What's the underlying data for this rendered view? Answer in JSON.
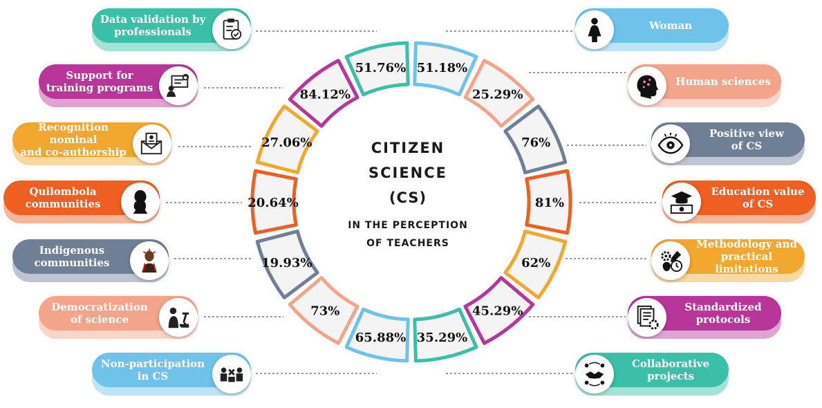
{
  "center": {
    "title_line1": "CITIZEN",
    "title_line2": "SCIENCE",
    "title_line3": "(CS)",
    "subtitle_line1": "IN THE PERCEPTION",
    "subtitle_line2": "OF TEACHERS"
  },
  "left_items": [
    {
      "label": "Data validation by\nprofessionals",
      "color": "#3bbfa8",
      "icon": "clipboard-check-icon"
    },
    {
      "label": "Support for\ntraining programs",
      "color": "#b8369a",
      "icon": "training-board-icon"
    },
    {
      "label": "Recognition  nominal\nand co-authorship",
      "color": "#f2a82e",
      "icon": "envelope-certificate-icon"
    },
    {
      "label": "Quilombola\ncommunities",
      "color": "#ef5f21",
      "icon": "person-silhouette-icon"
    },
    {
      "label": "Indigenous\ncommunities",
      "color": "#6f7f96",
      "icon": "indigenous-person-icon"
    },
    {
      "label": "Democratization\nof science",
      "color": "#f2a58a",
      "icon": "scientist-microscope-icon"
    },
    {
      "label": "Non-participation\nin CS",
      "color": "#6fc3ea",
      "icon": "people-vote-icon"
    }
  ],
  "right_items": [
    {
      "label": "Woman",
      "color": "#6fc3ea",
      "icon": "woman-icon"
    },
    {
      "label": "Human sciences",
      "color": "#f2a58a",
      "icon": "human-head-icon"
    },
    {
      "label": "Positive view\nof CS",
      "color": "#6f7f96",
      "icon": "eye-icon"
    },
    {
      "label": "Education value\nof CS",
      "color": "#ef5f21",
      "icon": "graduation-money-icon"
    },
    {
      "label": "Methodology and\npractical limitations",
      "color": "#f2a82e",
      "icon": "gears-clock-icon"
    },
    {
      "label": "Standardized\nprotocols",
      "color": "#b8369a",
      "icon": "documents-gear-icon"
    },
    {
      "label": "Collaborative\nprojects",
      "color": "#3bbfa8",
      "icon": "handshake-icon"
    }
  ],
  "ring_segments": [
    {
      "value": "51.18%",
      "color": "#6fc3ea"
    },
    {
      "value": "25.29%",
      "color": "#f2a58a"
    },
    {
      "value": "76%",
      "color": "#6f7f96"
    },
    {
      "value": "81%",
      "color": "#ef5f21"
    },
    {
      "value": "62%",
      "color": "#f2a82e"
    },
    {
      "value": "45.29%",
      "color": "#b8369a"
    },
    {
      "value": "35.29%",
      "color": "#3bbfa8"
    },
    {
      "value": "65.88%",
      "color": "#6fc3ea"
    },
    {
      "value": "73%",
      "color": "#f2a58a"
    },
    {
      "value": "19.93%",
      "color": "#6f7f96"
    },
    {
      "value": "20.64%",
      "color": "#ef5f21"
    },
    {
      "value": "27.06%",
      "color": "#f2a82e"
    },
    {
      "value": "84.12%",
      "color": "#b8369a"
    },
    {
      "value": "51.76%",
      "color": "#3bbfa8"
    }
  ]
}
